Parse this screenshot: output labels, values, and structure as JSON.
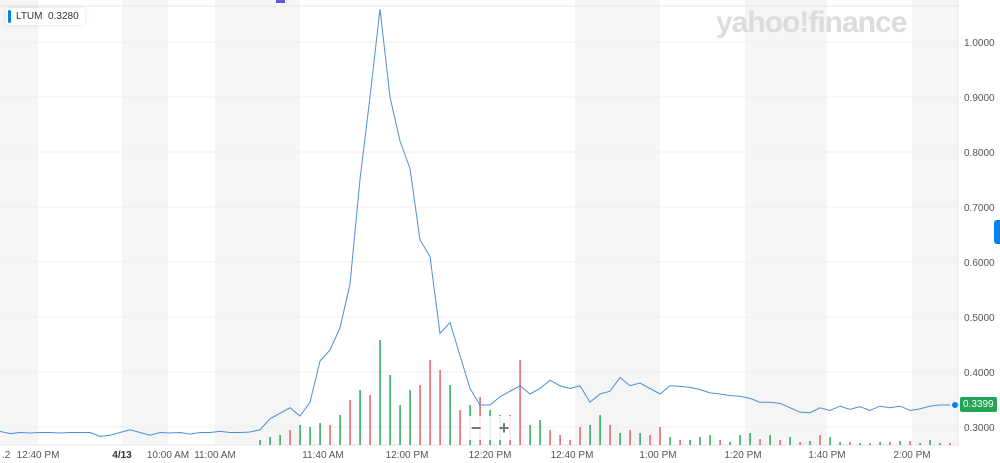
{
  "legend": {
    "symbol": "LTUM",
    "value": "0.3280"
  },
  "watermark": "yahoo!finance",
  "zoom_controls": {
    "minus": "−",
    "plus": "+"
  },
  "current_price": "0.3399",
  "colors": {
    "line": "#4a90d9",
    "up": "#21a453",
    "down": "#e15b64",
    "badge": "#21a453",
    "accent": "#0081f2"
  },
  "chart_data": {
    "type": "line",
    "title": "",
    "ylim": [
      0.27,
      1.07
    ],
    "y_ticks": [
      "1.0000",
      "0.9000",
      "0.8000",
      "0.7000",
      "0.6000",
      "0.5000",
      "0.4000",
      "0.3000"
    ],
    "x_ticks": [
      ".2",
      "12:40 PM",
      "4/13",
      "10:00 AM",
      "11:00 AM",
      "11:40 AM",
      "12:00 PM",
      "12:20 PM",
      "12:40 PM",
      "1:00 PM",
      "1:20 PM",
      "1:40 PM",
      "2:00 PM"
    ],
    "grid": true,
    "price": [
      0.292,
      0.288,
      0.29,
      0.289,
      0.29,
      0.29,
      0.289,
      0.29,
      0.29,
      0.29,
      0.283,
      0.285,
      0.29,
      0.295,
      0.29,
      0.285,
      0.29,
      0.289,
      0.29,
      0.287,
      0.29,
      0.29,
      0.292,
      0.29,
      0.29,
      0.291,
      0.295,
      0.315,
      0.325,
      0.335,
      0.32,
      0.345,
      0.42,
      0.44,
      0.48,
      0.56,
      0.75,
      0.9,
      1.06,
      0.9,
      0.82,
      0.77,
      0.64,
      0.61,
      0.47,
      0.49,
      0.43,
      0.37,
      0.34,
      0.34,
      0.355,
      0.365,
      0.375,
      0.36,
      0.37,
      0.385,
      0.375,
      0.37,
      0.375,
      0.345,
      0.36,
      0.365,
      0.39,
      0.375,
      0.38,
      0.37,
      0.36,
      0.375,
      0.374,
      0.372,
      0.368,
      0.362,
      0.36,
      0.357,
      0.356,
      0.352,
      0.345,
      0.345,
      0.343,
      0.335,
      0.327,
      0.326,
      0.335,
      0.33,
      0.338,
      0.332,
      0.337,
      0.33,
      0.338,
      0.335,
      0.338,
      0.33,
      0.333,
      0.338,
      0.34,
      0.34
    ],
    "volume": [
      [
        5,
        "up"
      ],
      [
        8,
        "up"
      ],
      [
        10,
        "up"
      ],
      [
        15,
        "down"
      ],
      [
        20,
        "up"
      ],
      [
        18,
        "up"
      ],
      [
        22,
        "up"
      ],
      [
        20,
        "down"
      ],
      [
        30,
        "up"
      ],
      [
        45,
        "down"
      ],
      [
        55,
        "up"
      ],
      [
        50,
        "down"
      ],
      [
        105,
        "up"
      ],
      [
        70,
        "up"
      ],
      [
        40,
        "up"
      ],
      [
        55,
        "up"
      ],
      [
        60,
        "down"
      ],
      [
        85,
        "down"
      ],
      [
        75,
        "down"
      ],
      [
        60,
        "up"
      ],
      [
        35,
        "down"
      ],
      [
        40,
        "up"
      ],
      [
        48,
        "down"
      ],
      [
        35,
        "up"
      ],
      [
        30,
        "up"
      ],
      [
        30,
        "down"
      ],
      [
        85,
        "down"
      ],
      [
        20,
        "up"
      ],
      [
        25,
        "up"
      ],
      [
        15,
        "down"
      ],
      [
        10,
        "down"
      ],
      [
        5,
        "down"
      ],
      [
        18,
        "down"
      ],
      [
        20,
        "up"
      ],
      [
        30,
        "up"
      ],
      [
        20,
        "down"
      ],
      [
        12,
        "up"
      ],
      [
        15,
        "down"
      ],
      [
        12,
        "up"
      ],
      [
        10,
        "down"
      ],
      [
        18,
        "down"
      ],
      [
        8,
        "up"
      ],
      [
        5,
        "down"
      ],
      [
        5,
        "up"
      ],
      [
        8,
        "up"
      ],
      [
        10,
        "up"
      ],
      [
        5,
        "down"
      ],
      [
        3,
        "up"
      ],
      [
        10,
        "up"
      ],
      [
        12,
        "up"
      ],
      [
        6,
        "down"
      ],
      [
        10,
        "up"
      ],
      [
        5,
        "down"
      ],
      [
        8,
        "up"
      ],
      [
        3,
        "down"
      ],
      [
        4,
        "up"
      ],
      [
        10,
        "down"
      ],
      [
        8,
        "up"
      ],
      [
        3,
        "up"
      ],
      [
        3,
        "down"
      ],
      [
        2,
        "up"
      ],
      [
        2,
        "down"
      ],
      [
        3,
        "up"
      ],
      [
        3,
        "down"
      ],
      [
        4,
        "up"
      ],
      [
        4,
        "down"
      ],
      [
        2,
        "up"
      ],
      [
        5,
        "up"
      ],
      [
        2,
        "up"
      ],
      [
        2,
        "down"
      ]
    ]
  }
}
